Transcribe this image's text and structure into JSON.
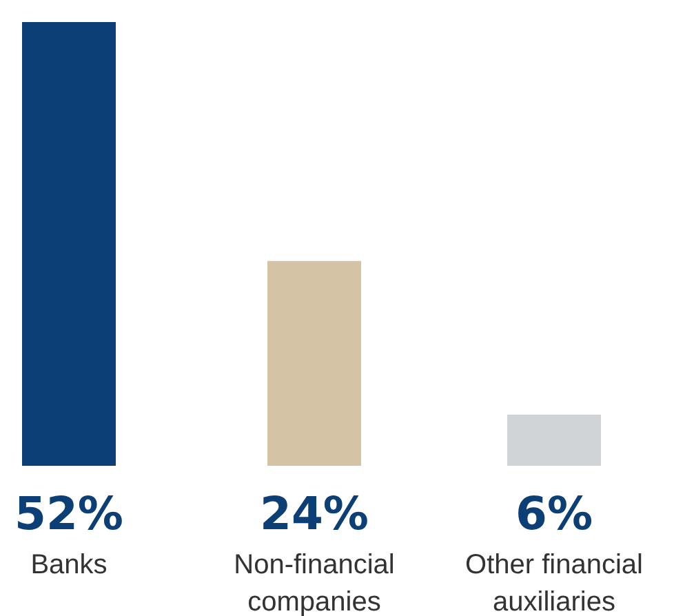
{
  "chart_data": {
    "type": "bar",
    "categories": [
      "Banks",
      "Non-financial companies",
      "Other financial auxiliaries"
    ],
    "values": [
      52,
      24,
      6
    ],
    "colors": [
      "#0b3f75",
      "#d5c3a5",
      "#d1d4d6"
    ],
    "value_labels": [
      "52%",
      "24%",
      "6%"
    ]
  }
}
